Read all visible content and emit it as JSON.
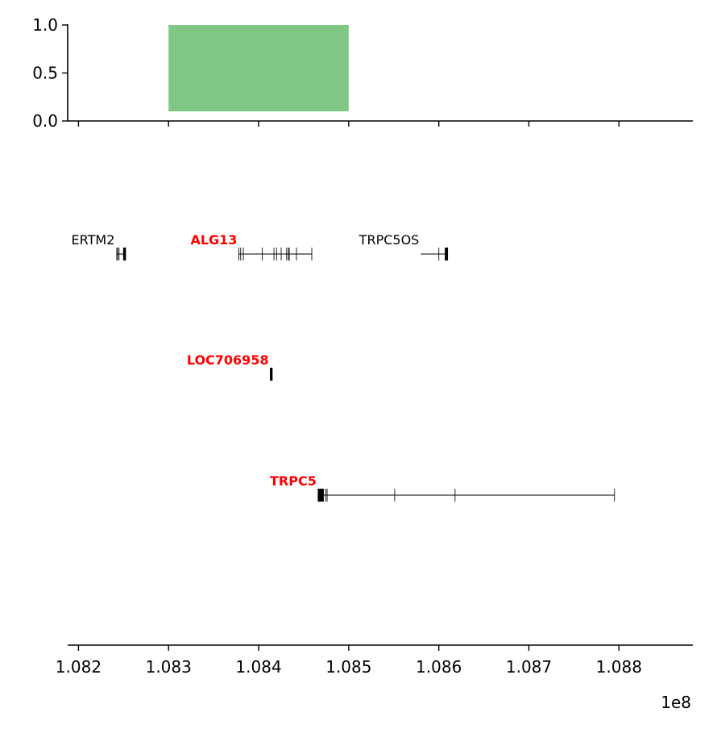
{
  "chart_data": [
    {
      "type": "bar",
      "panel": "top",
      "x_range": [
        108188000,
        108882000
      ],
      "ylim": [
        0.0,
        1.0
      ],
      "yticks": [
        "0.0",
        "0.5",
        "1.0"
      ],
      "bars": [
        {
          "x_start": 108300000,
          "x_end": 108500000,
          "y_bottom": 0.1,
          "y_top": 1.0,
          "color": "#81c784"
        }
      ]
    },
    {
      "type": "gene-track",
      "panel": "bottom",
      "x_range": [
        108188000,
        108882000
      ],
      "xticks": [
        "1.082",
        "1.083",
        "1.084",
        "1.085",
        "1.086",
        "1.087",
        "1.088"
      ],
      "xtick_values": [
        108200000,
        108300000,
        108400000,
        108500000,
        108600000,
        108700000,
        108800000
      ],
      "offset_label": "1e8",
      "genes": [
        {
          "name": "ERTM2",
          "display": "ERTM2",
          "highlighted": false,
          "row": 0,
          "start": 108242000,
          "end": 108251000,
          "exons": [
            108242500,
            108243500,
            108245000,
            108250000,
            108251000
          ]
        },
        {
          "name": "ALG13",
          "display": "ALG13",
          "highlighted": true,
          "row": 0,
          "start": 108378000,
          "end": 108459000,
          "exons": [
            108378000,
            108380000,
            108383000,
            108404000,
            108417000,
            108420000,
            108425000,
            108431000,
            108433000,
            108434000,
            108442000,
            108459000
          ]
        },
        {
          "name": "TRPC5OS",
          "display": "TRPC5OS",
          "highlighted": false,
          "row": 0,
          "start": 108580000,
          "end": 108609000,
          "exons": [
            108600000,
            108607000,
            108608000,
            108609000
          ]
        },
        {
          "name": "LOC706958",
          "display": "LOC706958",
          "highlighted": true,
          "row": 1,
          "start": 108413000,
          "end": 108415000,
          "exons": [
            108413000,
            108414000,
            108415000
          ]
        },
        {
          "name": "TRPC5",
          "display": "TRPC5",
          "highlighted": true,
          "row": 2,
          "start": 108466000,
          "end": 108795000,
          "exons": [
            108466000,
            108467000,
            108468000,
            108469000,
            108470000,
            108471000,
            108472000,
            108474500,
            108476000,
            108551000,
            108618000,
            108795000
          ]
        }
      ],
      "colors": {
        "highlight": "#ff0000",
        "normal": "#000000",
        "intron": "#7f7f7f",
        "exon": "#000000"
      }
    }
  ]
}
